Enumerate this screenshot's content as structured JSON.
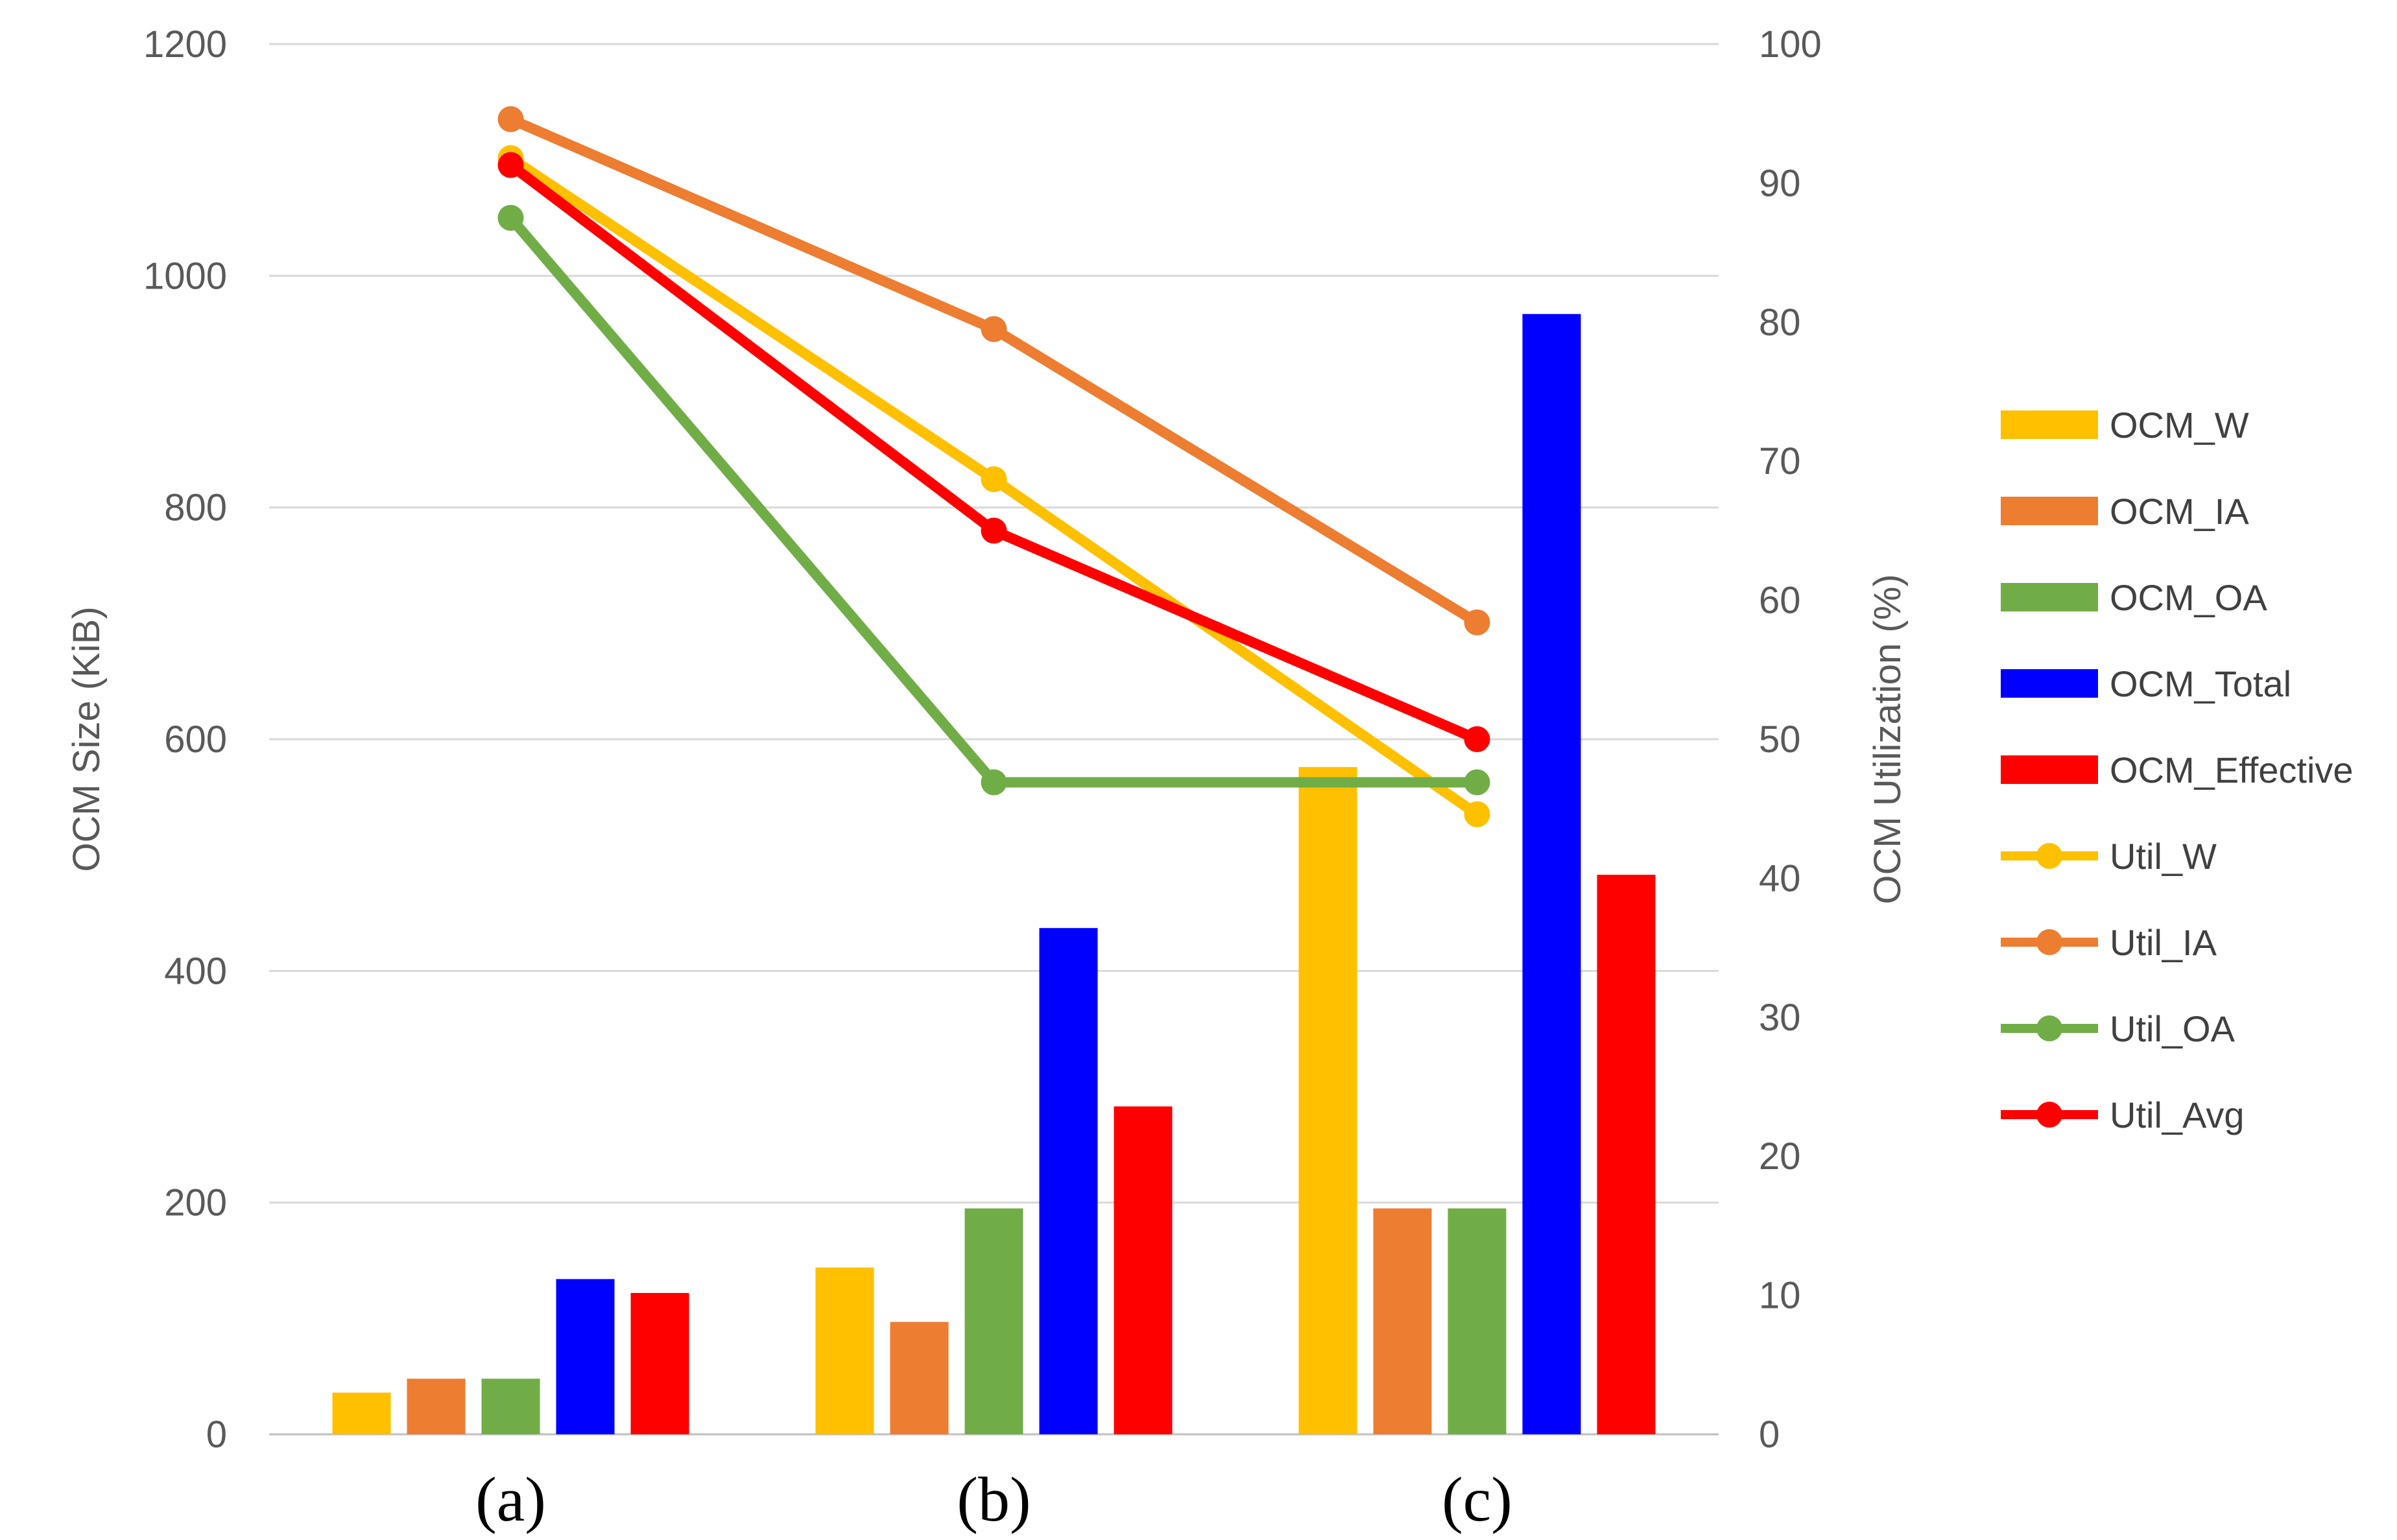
{
  "chart_data": {
    "type": "bar",
    "categories": [
      "(a)",
      "(b)",
      "(c)"
    ],
    "left_axis": {
      "label": "OCM Size (KiB)",
      "ylim": [
        0,
        1200
      ],
      "ticks": [
        "0",
        "200",
        "400",
        "600",
        "800",
        "1000",
        "1200"
      ]
    },
    "right_axis": {
      "label": "OCM Utilization (%)",
      "ylim": [
        0,
        100
      ],
      "ticks": [
        "0",
        "10",
        "20",
        "30",
        "40",
        "50",
        "60",
        "70",
        "80",
        "90",
        "100"
      ]
    },
    "grid": true,
    "legend_position": "right",
    "bar_series": [
      {
        "name": "OCM_W",
        "color": "#FFC000",
        "values": [
          36,
          144,
          576
        ]
      },
      {
        "name": "OCM_IA",
        "color": "#ED7D31",
        "values": [
          48,
          97,
          195
        ]
      },
      {
        "name": "OCM_OA",
        "color": "#70AD47",
        "values": [
          48,
          195,
          195
        ]
      },
      {
        "name": "OCM_Total",
        "color": "#0000FF",
        "values": [
          134,
          437,
          967
        ]
      },
      {
        "name": "OCM_Effective",
        "color": "#FF0000",
        "values": [
          122,
          283,
          483
        ]
      }
    ],
    "line_series": [
      {
        "name": "Util_W",
        "color": "#FFC000",
        "axis": "right",
        "values": [
          91.8,
          68.7,
          44.6
        ]
      },
      {
        "name": "Util_IA",
        "color": "#ED7D31",
        "axis": "right",
        "values": [
          94.6,
          79.5,
          58.4
        ]
      },
      {
        "name": "Util_OA",
        "color": "#70AD47",
        "axis": "right",
        "values": [
          87.5,
          46.9,
          46.9
        ]
      },
      {
        "name": "Util_Avg",
        "color": "#FF0000",
        "axis": "right",
        "values": [
          91.3,
          65.0,
          50.0
        ]
      }
    ]
  }
}
